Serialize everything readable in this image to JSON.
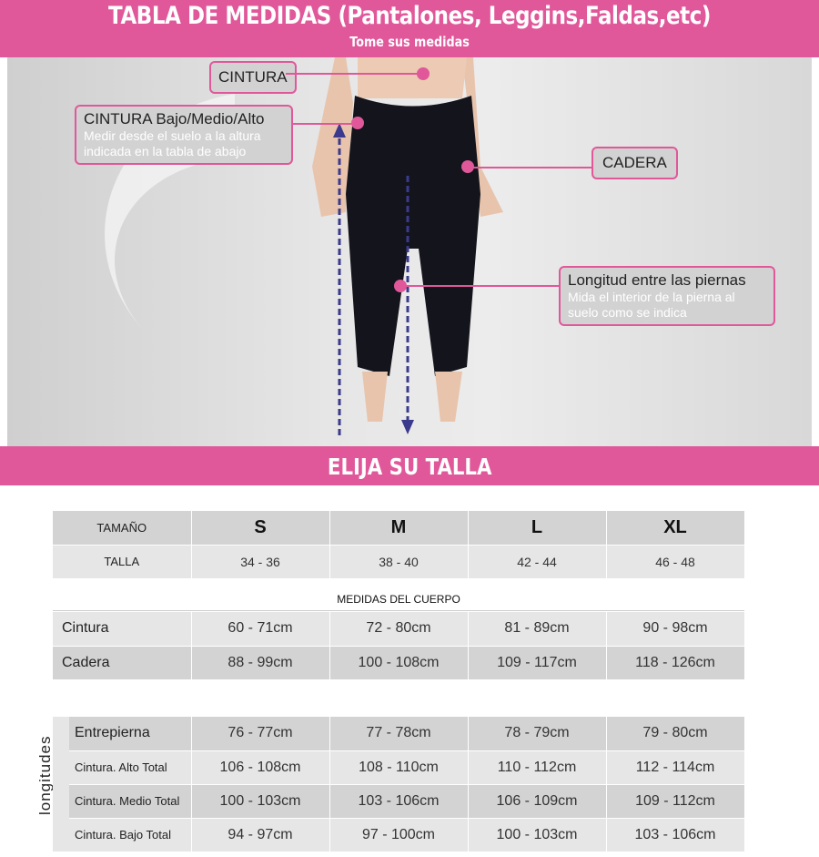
{
  "header": {
    "title": "TABLA DE MEDIDAS (Pantalones, Leggins,Faldas,etc)",
    "subtitle": "Tome sus medidas"
  },
  "callouts": {
    "cintura": "CINTURA",
    "cintura_bma": "CINTURA Bajo/Medio/Alto",
    "cintura_bma_sub1": "Medir desde el suelo a la altura",
    "cintura_bma_sub2": "indicada en la  tabla de abajo",
    "cadera": "CADERA",
    "longitud": "Longitud entre las piernas",
    "longitud_sub1": "Mida el interior de la pierna al",
    "longitud_sub2": "suelo como se indica"
  },
  "accent_color": "#e0589a",
  "choose": "ELIJA SU TALLA",
  "sizes": {
    "tamano_label": "TAMAÑO",
    "talla_label": "TALLA",
    "sizes": [
      "S",
      "M",
      "L",
      "XL"
    ],
    "tallas": [
      "34 - 36",
      "38 - 40",
      "42 - 44",
      "46 - 48"
    ]
  },
  "body": {
    "title": "MEDIDAS DEL CUERPO",
    "rows": [
      {
        "label": "Cintura",
        "values": [
          "60 - 71cm",
          "72 - 80cm",
          "81 - 89cm",
          "90 - 98cm"
        ]
      },
      {
        "label": "Cadera",
        "values": [
          "88 - 99cm",
          "100 - 108cm",
          "109 - 117cm",
          "118 - 126cm"
        ]
      }
    ]
  },
  "lengths": {
    "title": "longitudes",
    "rows": [
      {
        "label": "Entrepierna",
        "values": [
          "76 - 77cm",
          "77 - 78cm",
          "78 - 79cm",
          "79 - 80cm"
        ]
      },
      {
        "label": "Cintura. Alto Total",
        "values": [
          "106 - 108cm",
          "108 - 110cm",
          "110  - 112cm",
          "112 - 114cm"
        ]
      },
      {
        "label": "Cintura. Medio Total",
        "values": [
          "100 - 103cm",
          "103 - 106cm",
          "106 - 109cm",
          "109 - 112cm"
        ]
      },
      {
        "label": "Cintura. Bajo Total",
        "values": [
          "94 - 97cm",
          "97 - 100cm",
          "100 - 103cm",
          "103 - 106cm"
        ]
      }
    ]
  }
}
